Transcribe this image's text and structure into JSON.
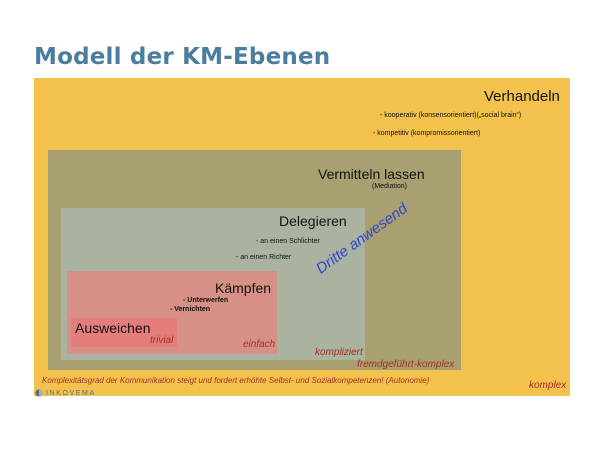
{
  "title": "Modell der KM-Ebenen",
  "levels": {
    "verhandeln": {
      "title": "Verhandeln",
      "items": [
        "- kooperativ (konsensorientiert)(„social brain“)",
        "- kompetitiv (kompromissorientiert)"
      ]
    },
    "vermitteln": {
      "title": "Vermitteln lassen",
      "subtitle": "(Mediation)"
    },
    "delegieren": {
      "title": "Delegieren",
      "items": [
        "- an einen Schlichter",
        "- an einen Richter"
      ]
    },
    "kaempfen": {
      "title": "Kämpfen",
      "items": [
        "- Unterwerfen",
        "- Vernichten"
      ]
    },
    "ausweichen": {
      "title": "Ausweichen"
    }
  },
  "third_party_label": "Dritte anwesend",
  "complexity_labels": {
    "trivial": "trivial",
    "einfach": "einfach",
    "kompliziert": "kompliziert",
    "fremdgefuehrt": "fremdgeführt-komplex",
    "komplex": "komplex"
  },
  "footer_note": "Komplexitätsgrad der Kommunikation steigt und fordert erhöhte Selbst- und Sozialkompetenzen! (Autonomie)",
  "logo_text": "INKOVEMA",
  "colors": {
    "outer": "#f3c24c",
    "mid": "#a8a071",
    "inner": "#a9b3a0",
    "red": "#d79085",
    "core": "#e57d7d",
    "title": "#4a7d9e",
    "accent_red": "#a33024",
    "diagonal_blue": "#2f43d6"
  }
}
